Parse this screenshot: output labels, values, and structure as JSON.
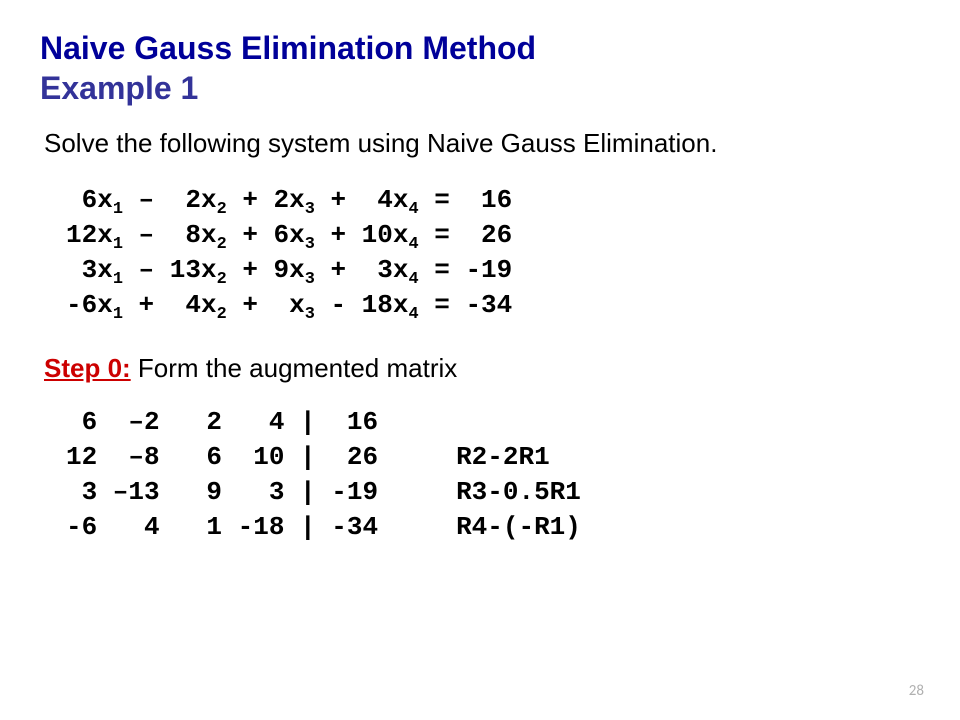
{
  "title": {
    "line1": "Naive Gauss Elimination Method",
    "line2": "Example 1",
    "line1_color": "#000099",
    "line2_color": "#333399",
    "fontsize": 32,
    "fontweight": "bold"
  },
  "intro": {
    "text": "Solve the following system using Naive Gauss Elimination.",
    "fontsize": 26,
    "color": "#000000",
    "fontfamily": "Tahoma"
  },
  "equations": {
    "fontfamily": "Courier New",
    "fontsize": 26,
    "fontweight": "bold",
    "color": "#000000",
    "rows": [
      {
        "c1": " 6",
        "v1": "x",
        "s1": "1",
        "op1": " – ",
        "c2": " 2",
        "v2": "x",
        "s2": "2",
        "op2": " + ",
        "c3": "2",
        "v3": "x",
        "s3": "3",
        "op3": " + ",
        "c4": " 4",
        "v4": "x",
        "s4": "4",
        "eq": " = ",
        "rhs": " 16"
      },
      {
        "c1": "12",
        "v1": "x",
        "s1": "1",
        "op1": " – ",
        "c2": " 8",
        "v2": "x",
        "s2": "2",
        "op2": " + ",
        "c3": "6",
        "v3": "x",
        "s3": "3",
        "op3": " + ",
        "c4": "10",
        "v4": "x",
        "s4": "4",
        "eq": " = ",
        "rhs": " 26"
      },
      {
        "c1": " 3",
        "v1": "x",
        "s1": "1",
        "op1": " – ",
        "c2": "13",
        "v2": "x",
        "s2": "2",
        "op2": " + ",
        "c3": "9",
        "v3": "x",
        "s3": "3",
        "op3": " + ",
        "c4": " 3",
        "v4": "x",
        "s4": "4",
        "eq": " = ",
        "rhs": "-19"
      },
      {
        "c1": "-6",
        "v1": "x",
        "s1": "1",
        "op1": " + ",
        "c2": " 4",
        "v2": "x",
        "s2": "2",
        "op2": " + ",
        "c3": " ",
        "v3": "x",
        "s3": "3",
        "op3": " - ",
        "c4": "18",
        "v4": "x",
        "s4": "4",
        "eq": " = ",
        "rhs": "-34"
      }
    ]
  },
  "step": {
    "label": "Step 0:",
    "label_color": "#cc0000",
    "label_underline": true,
    "label_fontweight": "bold",
    "text": "  Form the augmented matrix",
    "text_color": "#000000",
    "fontsize": 26
  },
  "matrix": {
    "fontfamily": "Courier New",
    "fontsize": 26,
    "fontweight": "bold",
    "color": "#000000",
    "rows": [
      " 6  –2   2   4 |  16",
      "12  –8   6  10 |  26     R2-2R1",
      " 3 –13   9   3 | -19     R3-0.5R1",
      "-6   4   1 -18 | -34     R4-(-R1)"
    ]
  },
  "page_number": {
    "value": "28",
    "color": "#b0b0b0",
    "fontsize": 15
  },
  "background_color": "#ffffff"
}
